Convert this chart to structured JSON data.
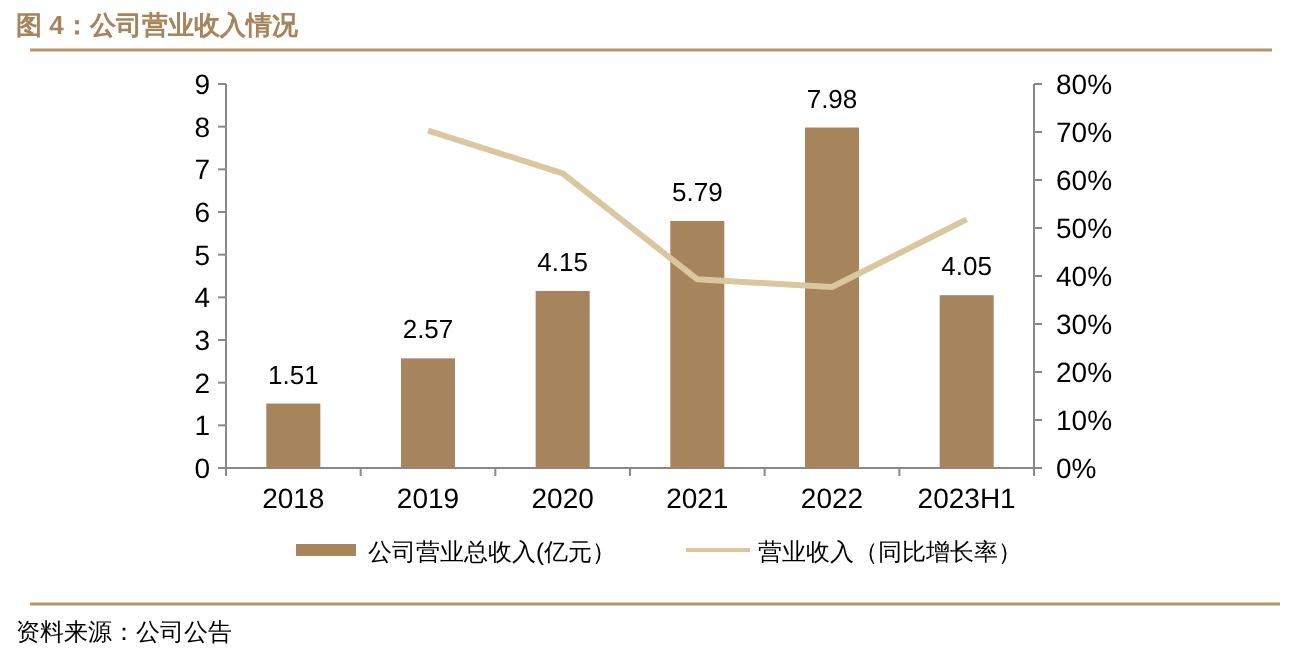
{
  "chart_data": {
    "type": "bar",
    "title": "图 4：公司营业收入情况",
    "categories": [
      "2018",
      "2019",
      "2020",
      "2021",
      "2022",
      "2023H1"
    ],
    "series": [
      {
        "name": "公司营业总收入(亿元）",
        "color": "#a6845c",
        "values": [
          1.51,
          2.57,
          4.15,
          5.79,
          7.98,
          4.05
        ],
        "value_labels": [
          "1.51",
          "2.57",
          "4.15",
          "5.79",
          "7.98",
          "4.05"
        ]
      },
      {
        "name": "营业收入（同比增长率）",
        "type": "line",
        "axis": "y2",
        "color": "#d9c7a0",
        "values": [
          null,
          70.3,
          61.4,
          39.3,
          37.7,
          51.8
        ]
      }
    ],
    "ylim": [
      0,
      9
    ],
    "yticks": [
      0,
      1,
      2,
      3,
      4,
      5,
      6,
      7,
      8,
      9
    ],
    "y2lim": [
      0,
      80
    ],
    "y2ticks": [
      {
        "value": 0,
        "label": "0%"
      },
      {
        "value": 10,
        "label": "10%"
      },
      {
        "value": 20,
        "label": "20%"
      },
      {
        "value": 30,
        "label": "30%"
      },
      {
        "value": 40,
        "label": "40%"
      },
      {
        "value": 50,
        "label": "50%"
      },
      {
        "value": 60,
        "label": "60%"
      },
      {
        "value": 70,
        "label": "70%"
      },
      {
        "value": 80,
        "label": "80%"
      }
    ],
    "legend": "bottom",
    "grid": false,
    "annotations": [
      "资料来源：公司公告"
    ]
  }
}
